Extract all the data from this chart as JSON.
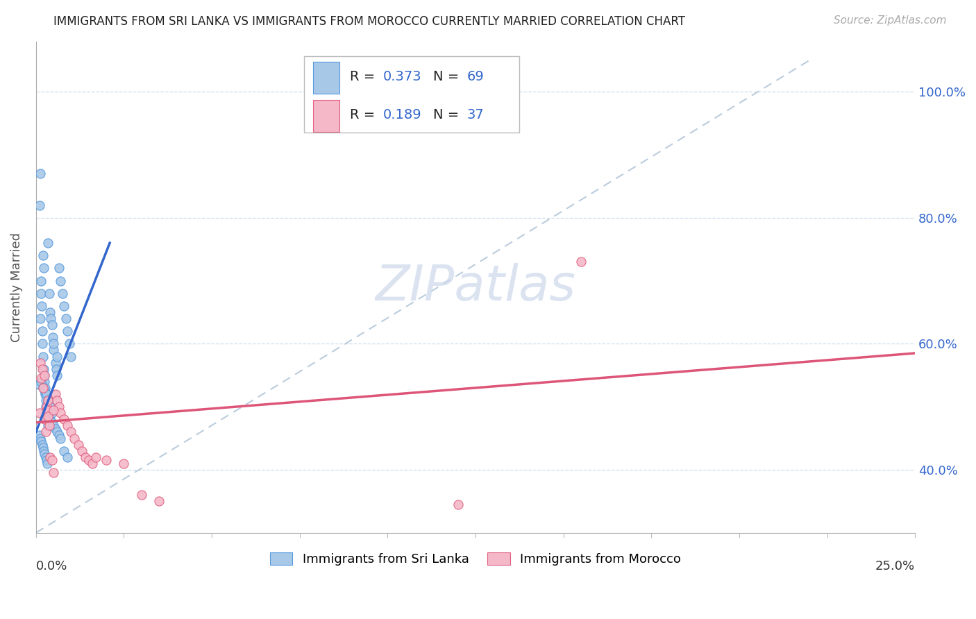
{
  "title": "IMMIGRANTS FROM SRI LANKA VS IMMIGRANTS FROM MOROCCO CURRENTLY MARRIED CORRELATION CHART",
  "source": "Source: ZipAtlas.com",
  "ylabel": "Currently Married",
  "xlim": [
    0.0,
    0.25
  ],
  "ylim": [
    0.3,
    1.08
  ],
  "yticks": [
    0.4,
    0.6,
    0.8,
    1.0
  ],
  "yticklabels": [
    "40.0%",
    "60.0%",
    "80.0%",
    "100.0%"
  ],
  "xtick_left_label": "0.0%",
  "xtick_right_label": "25.0%",
  "sri_lanka_color": "#a8c8e8",
  "sri_lanka_edge_color": "#5599dd",
  "morocco_color": "#f5b8c8",
  "morocco_edge_color": "#e06080",
  "sri_lanka_line_color": "#3366cc",
  "morocco_line_color": "#dd5577",
  "diagonal_color": "#bbccdd",
  "grid_color": "#ccddee",
  "background_color": "#ffffff",
  "R_sri_lanka": "0.373",
  "N_sri_lanka": "69",
  "R_morocco": "0.189",
  "N_morocco": "37",
  "legend_label_color": "#3366cc",
  "watermark_text": "ZIPatlas",
  "watermark_color": "#ccd8ea",
  "sl_x": [
    0.0008,
    0.001,
    0.0012,
    0.0013,
    0.0015,
    0.0015,
    0.0017,
    0.0018,
    0.0019,
    0.002,
    0.0021,
    0.0022,
    0.0023,
    0.0024,
    0.0025,
    0.0026,
    0.0027,
    0.0028,
    0.0029,
    0.003,
    0.0032,
    0.0034,
    0.0035,
    0.0038,
    0.004,
    0.0042,
    0.0045,
    0.0048,
    0.005,
    0.0055,
    0.0058,
    0.006,
    0.0065,
    0.007,
    0.0075,
    0.008,
    0.0085,
    0.009,
    0.0095,
    0.01,
    0.001,
    0.0012,
    0.0015,
    0.0018,
    0.002,
    0.0022,
    0.0025,
    0.0028,
    0.003,
    0.0033,
    0.0036,
    0.004,
    0.0045,
    0.005,
    0.0055,
    0.006,
    0.0065,
    0.007,
    0.008,
    0.009,
    0.0015,
    0.002,
    0.0025,
    0.003,
    0.0035,
    0.004,
    0.0045,
    0.005,
    0.006
  ],
  "sl_y": [
    0.535,
    0.82,
    0.87,
    0.64,
    0.7,
    0.68,
    0.66,
    0.62,
    0.6,
    0.58,
    0.74,
    0.72,
    0.56,
    0.55,
    0.54,
    0.53,
    0.52,
    0.51,
    0.5,
    0.49,
    0.48,
    0.47,
    0.76,
    0.68,
    0.65,
    0.64,
    0.63,
    0.61,
    0.59,
    0.57,
    0.56,
    0.55,
    0.72,
    0.7,
    0.68,
    0.66,
    0.64,
    0.62,
    0.6,
    0.58,
    0.455,
    0.45,
    0.445,
    0.44,
    0.435,
    0.43,
    0.425,
    0.42,
    0.415,
    0.41,
    0.49,
    0.48,
    0.475,
    0.47,
    0.465,
    0.46,
    0.455,
    0.45,
    0.43,
    0.42,
    0.54,
    0.53,
    0.525,
    0.52,
    0.51,
    0.5,
    0.49,
    0.6,
    0.58
  ],
  "mo_x": [
    0.001,
    0.0015,
    0.002,
    0.0025,
    0.0028,
    0.003,
    0.0032,
    0.0035,
    0.0038,
    0.004,
    0.0045,
    0.005,
    0.0055,
    0.006,
    0.0065,
    0.007,
    0.008,
    0.009,
    0.01,
    0.011,
    0.012,
    0.013,
    0.014,
    0.015,
    0.016,
    0.017,
    0.02,
    0.025,
    0.03,
    0.035,
    0.0012,
    0.0018,
    0.0025,
    0.0035,
    0.005,
    0.155,
    0.12
  ],
  "mo_y": [
    0.49,
    0.545,
    0.53,
    0.48,
    0.46,
    0.5,
    0.495,
    0.485,
    0.47,
    0.42,
    0.415,
    0.395,
    0.52,
    0.51,
    0.5,
    0.49,
    0.48,
    0.47,
    0.46,
    0.45,
    0.44,
    0.43,
    0.42,
    0.415,
    0.41,
    0.42,
    0.415,
    0.41,
    0.36,
    0.35,
    0.57,
    0.56,
    0.55,
    0.51,
    0.495,
    0.73,
    0.345
  ],
  "sl_line_x": [
    0.0,
    0.021
  ],
  "sl_line_y": [
    0.46,
    0.76
  ],
  "mo_line_x": [
    0.0,
    0.25
  ],
  "mo_line_y": [
    0.475,
    0.585
  ]
}
